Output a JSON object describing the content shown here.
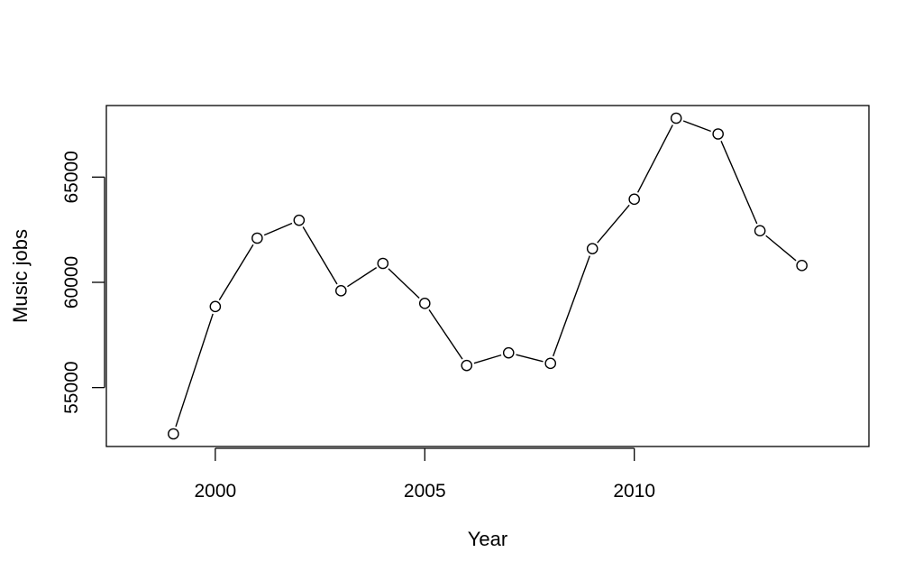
{
  "chart_data": {
    "type": "line",
    "xlabel": "Year",
    "ylabel": "Music jobs",
    "x": [
      1999,
      2000,
      2001,
      2002,
      2003,
      2004,
      2005,
      2006,
      2007,
      2008,
      2009,
      2010,
      2011,
      2012,
      2013,
      2014
    ],
    "series": [
      {
        "values": [
          52800,
          58850,
          62100,
          62950,
          59600,
          60900,
          59000,
          56050,
          56650,
          56150,
          61600,
          63950,
          67800,
          67050,
          62450,
          60800
        ]
      }
    ],
    "xlim": [
      1997.4,
      2015.6
    ],
    "ylim": [
      52200,
      68400
    ],
    "x_ticks": [
      2000,
      2005,
      2010
    ],
    "y_ticks": [
      55000,
      60000,
      65000
    ],
    "x_tick_labels": [
      "2000",
      "2005",
      "2010"
    ],
    "y_tick_labels": [
      "55000",
      "60000",
      "65000"
    ],
    "grid": false,
    "legend": "none",
    "marker": "open-circle",
    "colors": {
      "line": "#000000",
      "marker_fill": "#ffffff",
      "frame": "#000000"
    }
  }
}
